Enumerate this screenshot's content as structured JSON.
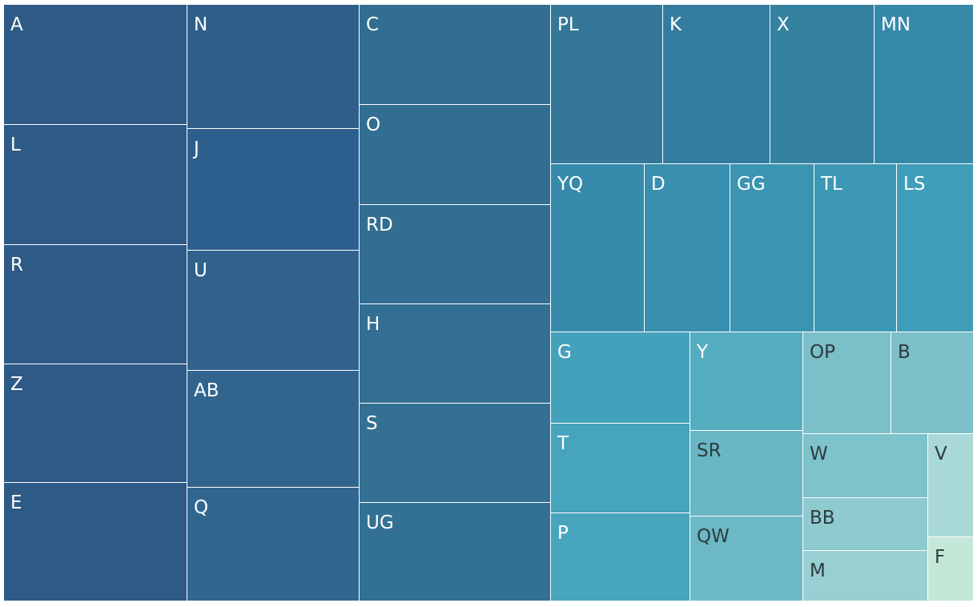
{
  "chart_data": {
    "type": "treemap",
    "title": "",
    "color_scale": [
      "#2d5d8d",
      "#3a94b1",
      "#c3e8d8"
    ],
    "items": [
      {
        "label": "A",
        "color": "#2e5a86"
      },
      {
        "label": "L",
        "color": "#2e5a86"
      },
      {
        "label": "R",
        "color": "#2e5a86"
      },
      {
        "label": "Z",
        "color": "#2e5a86"
      },
      {
        "label": "E",
        "color": "#2e5a86"
      },
      {
        "label": "N",
        "color": "#2f5f88"
      },
      {
        "label": "J",
        "color": "#2d5f8e"
      },
      {
        "label": "U",
        "color": "#30628c"
      },
      {
        "label": "AB",
        "color": "#31658e"
      },
      {
        "label": "Q",
        "color": "#31678f"
      },
      {
        "label": "C",
        "color": "#326e91"
      },
      {
        "label": "O",
        "color": "#326e91"
      },
      {
        "label": "RD",
        "color": "#326e91"
      },
      {
        "label": "H",
        "color": "#336f92"
      },
      {
        "label": "S",
        "color": "#337093"
      },
      {
        "label": "UG",
        "color": "#337194"
      },
      {
        "label": "PL",
        "color": "#347798"
      },
      {
        "label": "K",
        "color": "#347c9f"
      },
      {
        "label": "X",
        "color": "#3581a0"
      },
      {
        "label": "MN",
        "color": "#3688a9"
      },
      {
        "label": "YQ",
        "color": "#378aac"
      },
      {
        "label": "D",
        "color": "#398fb0"
      },
      {
        "label": "GG",
        "color": "#3b94b2"
      },
      {
        "label": "TL",
        "color": "#3d98b6"
      },
      {
        "label": "LS",
        "color": "#409dba"
      },
      {
        "label": "G",
        "color": "#44a1bc"
      },
      {
        "label": "T",
        "color": "#47a4bd"
      },
      {
        "label": "P",
        "color": "#48a5be"
      },
      {
        "label": "Y",
        "color": "#55adc0"
      },
      {
        "label": "SR",
        "color": "#69b6c4"
      },
      {
        "label": "QW",
        "color": "#6cb8c5"
      },
      {
        "label": "OP",
        "color": "#7bbfc9"
      },
      {
        "label": "B",
        "color": "#7bbfc9"
      },
      {
        "label": "W",
        "color": "#7ec2ca"
      },
      {
        "label": "BB",
        "color": "#8fcacf"
      },
      {
        "label": "M",
        "color": "#98cfd3"
      },
      {
        "label": "V",
        "color": "#a8d9d6"
      },
      {
        "label": "F",
        "color": "#c3e8d8"
      }
    ]
  }
}
